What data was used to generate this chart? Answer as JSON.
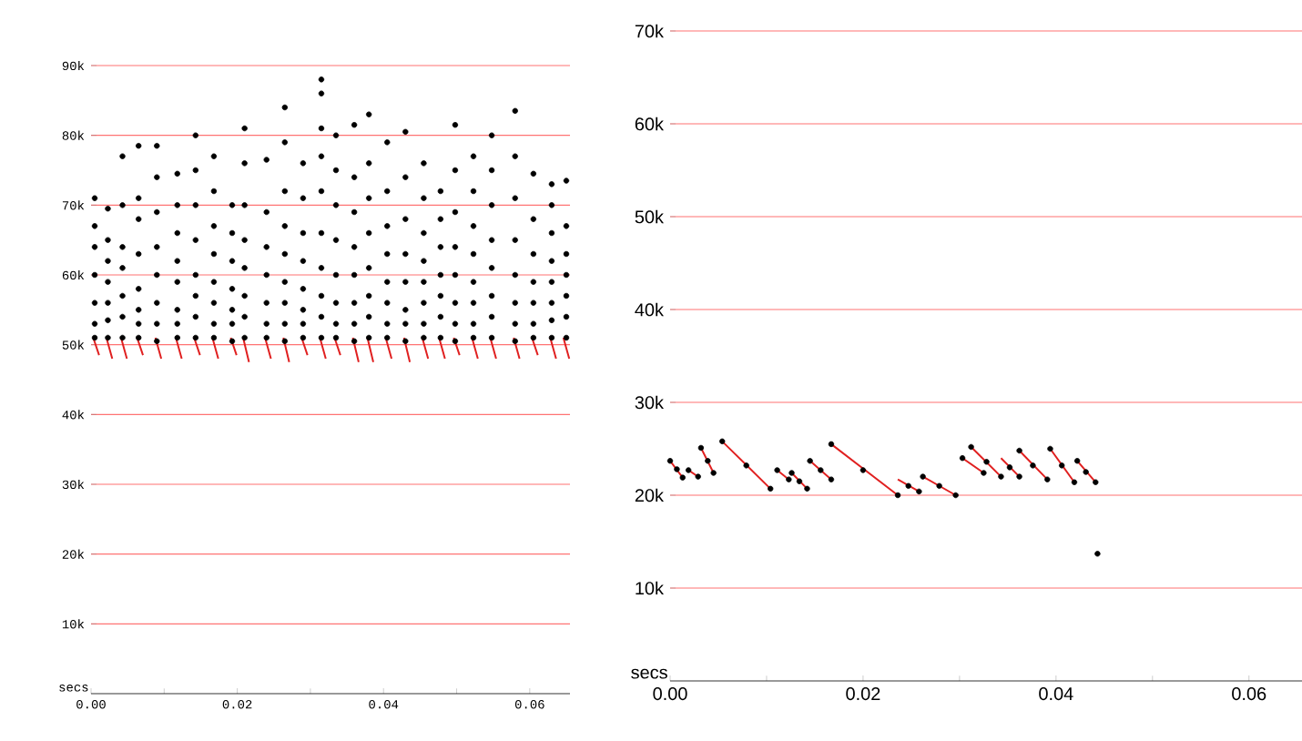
{
  "chart_data": [
    {
      "type": "scatter",
      "xlabel": "secs",
      "xlim": [
        0,
        0.0655
      ],
      "ylim": [
        0,
        90000
      ],
      "xticks": [
        {
          "value": 0,
          "label": "0.00"
        },
        {
          "value": 0.02,
          "label": "0.02"
        },
        {
          "value": 0.04,
          "label": "0.04"
        },
        {
          "value": 0.06,
          "label": "0.06"
        }
      ],
      "yticks": [
        {
          "value": 10000,
          "label": "10k"
        },
        {
          "value": 20000,
          "label": "20k"
        },
        {
          "value": 30000,
          "label": "30k"
        },
        {
          "value": 40000,
          "label": "40k"
        },
        {
          "value": 50000,
          "label": "50k"
        },
        {
          "value": 60000,
          "label": "60k"
        },
        {
          "value": 70000,
          "label": "70k"
        },
        {
          "value": 80000,
          "label": "80k"
        },
        {
          "value": 90000,
          "label": "90k"
        }
      ],
      "grid": "y",
      "series": [
        {
          "color": "#000000",
          "marker": "circle",
          "x": [
            0.0005,
            0.0005,
            0.0005,
            0.0005,
            0.0005,
            0.0005,
            0.0005,
            0.0023,
            0.0023,
            0.0023,
            0.0023,
            0.0023,
            0.0023,
            0.0023,
            0.0043,
            0.0043,
            0.0043,
            0.0043,
            0.0043,
            0.0043,
            0.0043,
            0.0065,
            0.0065,
            0.0065,
            0.0065,
            0.0065,
            0.0065,
            0.0065,
            0.0065,
            0.009,
            0.009,
            0.009,
            0.009,
            0.009,
            0.009,
            0.009,
            0.009,
            0.0118,
            0.0118,
            0.0118,
            0.0118,
            0.0118,
            0.0118,
            0.0118,
            0.0118,
            0.0143,
            0.0143,
            0.0143,
            0.0143,
            0.0143,
            0.0143,
            0.0143,
            0.0143,
            0.0168,
            0.0168,
            0.0168,
            0.0168,
            0.0168,
            0.0168,
            0.0168,
            0.0168,
            0.0193,
            0.0193,
            0.0193,
            0.0193,
            0.0193,
            0.0193,
            0.0193,
            0.021,
            0.021,
            0.021,
            0.021,
            0.021,
            0.021,
            0.021,
            0.021,
            0.024,
            0.024,
            0.024,
            0.024,
            0.024,
            0.024,
            0.024,
            0.0265,
            0.0265,
            0.0265,
            0.0265,
            0.0265,
            0.0265,
            0.0265,
            0.0265,
            0.0265,
            0.029,
            0.029,
            0.029,
            0.029,
            0.029,
            0.029,
            0.029,
            0.029,
            0.0315,
            0.0315,
            0.0315,
            0.0315,
            0.0315,
            0.0315,
            0.0315,
            0.0315,
            0.0315,
            0.0315,
            0.0335,
            0.0335,
            0.0335,
            0.0335,
            0.0335,
            0.0335,
            0.0335,
            0.0335,
            0.036,
            0.036,
            0.036,
            0.036,
            0.036,
            0.036,
            0.036,
            0.036,
            0.038,
            0.038,
            0.038,
            0.038,
            0.038,
            0.038,
            0.038,
            0.038,
            0.0405,
            0.0405,
            0.0405,
            0.0405,
            0.0405,
            0.0405,
            0.0405,
            0.0405,
            0.043,
            0.043,
            0.043,
            0.043,
            0.043,
            0.043,
            0.043,
            0.043,
            0.0455,
            0.0455,
            0.0455,
            0.0455,
            0.0455,
            0.0455,
            0.0455,
            0.0455,
            0.0478,
            0.0478,
            0.0478,
            0.0478,
            0.0478,
            0.0478,
            0.0478,
            0.0498,
            0.0498,
            0.0498,
            0.0498,
            0.0498,
            0.0498,
            0.0498,
            0.0498,
            0.0523,
            0.0523,
            0.0523,
            0.0523,
            0.0523,
            0.0523,
            0.0523,
            0.0523,
            0.0548,
            0.0548,
            0.0548,
            0.0548,
            0.0548,
            0.0548,
            0.0548,
            0.0548,
            0.058,
            0.058,
            0.058,
            0.058,
            0.058,
            0.058,
            0.058,
            0.058,
            0.0605,
            0.0605,
            0.0605,
            0.0605,
            0.0605,
            0.0605,
            0.0605,
            0.063,
            0.063,
            0.063,
            0.063,
            0.063,
            0.063,
            0.063,
            0.063,
            0.065,
            0.065,
            0.065,
            0.065,
            0.065,
            0.065,
            0.065
          ],
          "values": [
            51000,
            53000,
            56000,
            60000,
            64000,
            67000,
            71000,
            51000,
            53500,
            56000,
            59000,
            62000,
            65000,
            69500,
            51000,
            54000,
            57000,
            61000,
            64000,
            70000,
            77000,
            51000,
            53000,
            55000,
            58000,
            63000,
            68000,
            71000,
            78500,
            50500,
            53000,
            56000,
            60000,
            64000,
            69000,
            74000,
            78500,
            51000,
            53000,
            55000,
            59000,
            62000,
            66000,
            70000,
            74500,
            51000,
            54000,
            57000,
            60000,
            65000,
            70000,
            75000,
            80000,
            51000,
            53000,
            56000,
            59000,
            63000,
            67000,
            72000,
            77000,
            50500,
            53000,
            55000,
            58000,
            62000,
            66000,
            70000,
            51000,
            54000,
            57000,
            61000,
            65000,
            70000,
            76000,
            81000,
            51000,
            53000,
            56000,
            60000,
            64000,
            69000,
            76500,
            50500,
            53000,
            56000,
            59000,
            63000,
            67000,
            72000,
            79000,
            84000,
            51000,
            53000,
            55000,
            58000,
            62000,
            66000,
            71000,
            76000,
            51000,
            54000,
            57000,
            61000,
            66000,
            72000,
            77000,
            81000,
            86000,
            88000,
            51000,
            53000,
            56000,
            60000,
            65000,
            70000,
            75000,
            80000,
            50500,
            53000,
            56000,
            60000,
            64000,
            69000,
            74000,
            81500,
            51000,
            54000,
            57000,
            61000,
            66000,
            71000,
            76000,
            83000,
            51000,
            53000,
            56000,
            59000,
            63000,
            67000,
            72000,
            79000,
            50500,
            53000,
            55000,
            59000,
            63000,
            68000,
            74000,
            80500,
            51000,
            53000,
            56000,
            59000,
            62000,
            66000,
            71000,
            76000,
            51000,
            54000,
            57000,
            60000,
            64000,
            68000,
            72000,
            50500,
            53000,
            56000,
            60000,
            64000,
            69000,
            75000,
            81500,
            51000,
            53000,
            56000,
            59000,
            63000,
            67000,
            72000,
            77000,
            51000,
            54000,
            57000,
            61000,
            65000,
            70000,
            75000,
            80000,
            50500,
            53000,
            56000,
            60000,
            65000,
            71000,
            77000,
            83500,
            51000,
            53000,
            56000,
            59000,
            63000,
            68000,
            74500,
            51000,
            53500,
            56000,
            59000,
            62000,
            66000,
            70000,
            73000,
            51000,
            54000,
            57000,
            60000,
            63000,
            67000,
            73500
          ]
        },
        {
          "type": "line",
          "color": "#e02020",
          "marker": "none",
          "x": [
            0.0003,
            0.0011,
            null,
            0.0021,
            0.0029,
            null,
            0.0041,
            0.0049,
            null,
            0.0063,
            0.0071,
            null,
            0.0088,
            0.0096,
            null,
            0.0116,
            0.0124,
            null,
            0.0141,
            0.0149,
            null,
            0.0166,
            0.0174,
            null,
            0.0191,
            0.0199,
            null,
            0.0208,
            0.0216,
            null,
            0.0238,
            0.0246,
            null,
            0.0263,
            0.0271,
            null,
            0.0288,
            0.0296,
            null,
            0.0313,
            0.0321,
            null,
            0.0333,
            0.0341,
            null,
            0.0358,
            0.0366,
            null,
            0.0378,
            0.0386,
            null,
            0.0403,
            0.0411,
            null,
            0.0428,
            0.0436,
            null,
            0.0453,
            0.0461,
            null,
            0.0476,
            0.0484,
            null,
            0.0496,
            0.0504,
            null,
            0.0521,
            0.0529,
            null,
            0.0546,
            0.0554,
            null,
            0.0578,
            0.0586,
            null,
            0.0603,
            0.0611,
            null,
            0.0628,
            0.0636,
            null,
            0.0646,
            0.0654
          ],
          "values": [
            51000,
            48500,
            null,
            51000,
            48000,
            null,
            51000,
            48000,
            null,
            51000,
            48500,
            null,
            51000,
            48000,
            null,
            51000,
            48000,
            null,
            51000,
            48500,
            null,
            51000,
            48000,
            null,
            51000,
            48500,
            null,
            51000,
            47500,
            null,
            51000,
            48000,
            null,
            51000,
            47500,
            null,
            51000,
            48500,
            null,
            51000,
            48000,
            null,
            51000,
            48500,
            null,
            51000,
            47500,
            null,
            51000,
            47500,
            null,
            51000,
            48000,
            null,
            51000,
            47500,
            null,
            51000,
            48000,
            null,
            51000,
            48000,
            null,
            51000,
            48500,
            null,
            51000,
            48000,
            null,
            51000,
            48000,
            null,
            51000,
            48000,
            null,
            51000,
            48500,
            null,
            51000,
            48000,
            null,
            51000,
            48000
          ]
        }
      ]
    },
    {
      "type": "scatter",
      "xlabel": "secs",
      "xlim": [
        0,
        0.0655
      ],
      "ylim": [
        0,
        70000
      ],
      "xticks": [
        {
          "value": 0,
          "label": "0.00"
        },
        {
          "value": 0.02,
          "label": "0.02"
        },
        {
          "value": 0.04,
          "label": "0.04"
        },
        {
          "value": 0.06,
          "label": "0.06"
        }
      ],
      "yticks": [
        {
          "value": 10000,
          "label": "10k"
        },
        {
          "value": 20000,
          "label": "20k"
        },
        {
          "value": 30000,
          "label": "30k"
        },
        {
          "value": 40000,
          "label": "40k"
        },
        {
          "value": 50000,
          "label": "50k"
        },
        {
          "value": 60000,
          "label": "60k"
        },
        {
          "value": 70000,
          "label": "70k"
        }
      ],
      "grid": "y",
      "series": [
        {
          "color": "#000000",
          "marker": "circle",
          "x": [
            0.0,
            0.0007,
            0.0013,
            0.0019,
            0.0029,
            0.0032,
            0.0039,
            0.0045,
            0.0054,
            0.0079,
            0.0104,
            0.0111,
            0.0123,
            0.0126,
            0.0134,
            0.0142,
            0.0145,
            0.0156,
            0.0167,
            0.0167,
            0.02,
            0.0236,
            0.0247,
            0.0258,
            0.0262,
            0.0279,
            0.0296,
            0.0303,
            0.0325,
            0.0312,
            0.0328,
            0.0343,
            0.0352,
            0.0362,
            0.0362,
            0.0376,
            0.0391,
            0.0394,
            0.0406,
            0.0419,
            0.0422,
            0.0431,
            0.0441,
            0.0443
          ],
          "values": [
            23700,
            22800,
            21900,
            22700,
            22000,
            25100,
            23700,
            22400,
            25800,
            23200,
            20700,
            22700,
            21700,
            22400,
            21500,
            20700,
            23700,
            22700,
            21700,
            25500,
            22700,
            20000,
            21000,
            20400,
            22000,
            21000,
            20000,
            24000,
            22400,
            25200,
            23600,
            22000,
            23000,
            22000,
            24800,
            23200,
            21700,
            25000,
            23200,
            21400,
            23700,
            22500,
            21400,
            13700
          ]
        },
        {
          "type": "line",
          "color": "#e02020",
          "marker": "none",
          "x": [
            0.0,
            0.0013,
            null,
            0.0019,
            0.0029,
            null,
            0.0032,
            0.0045,
            null,
            0.0054,
            0.0104,
            null,
            0.0111,
            0.0123,
            null,
            0.0126,
            0.0142,
            null,
            0.0145,
            0.0167,
            null,
            0.0167,
            0.0236,
            null,
            0.0236,
            0.0258,
            null,
            0.0262,
            0.0296,
            null,
            0.0303,
            0.0325,
            null,
            0.0312,
            0.0343,
            null,
            0.0343,
            0.0362,
            null,
            0.0362,
            0.0391,
            null,
            0.0394,
            0.0419,
            null,
            0.0422,
            0.0441
          ],
          "values": [
            23700,
            21900,
            null,
            22700,
            22000,
            null,
            25100,
            22400,
            null,
            25800,
            20700,
            null,
            22700,
            21700,
            null,
            22400,
            20700,
            null,
            23700,
            21700,
            null,
            25500,
            20000,
            null,
            21700,
            20400,
            null,
            22000,
            20000,
            null,
            24000,
            22400,
            null,
            25200,
            22000,
            null,
            24000,
            22000,
            null,
            24800,
            21700,
            null,
            25000,
            21400,
            null,
            23700,
            21400
          ]
        }
      ]
    }
  ]
}
